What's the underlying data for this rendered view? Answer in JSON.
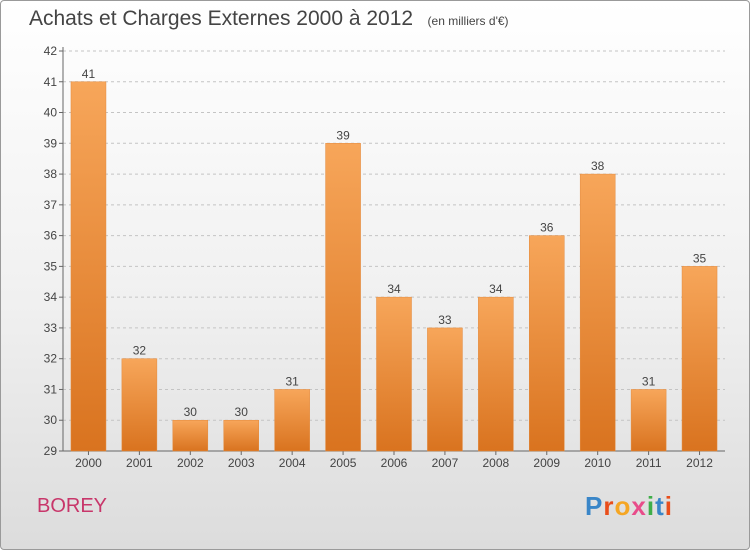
{
  "header": {
    "title": "Achats et Charges Externes 2000 à 2012",
    "unit": "(en milliers d'€)"
  },
  "footer": {
    "commune": "BOREY",
    "brand": "Proxiti"
  },
  "colors": {
    "bar_light": "#f7a65a",
    "bar_dark": "#d9731f",
    "commune": "#c8366a",
    "brand_letters": [
      "#3a86c8",
      "#e94e1b",
      "#f5a623",
      "#e84c8a",
      "#3fae49",
      "#3a86c8",
      "#e94e1b"
    ]
  },
  "chart_data": {
    "type": "bar",
    "categories": [
      "2000",
      "2001",
      "2002",
      "2003",
      "2004",
      "2005",
      "2006",
      "2007",
      "2008",
      "2009",
      "2010",
      "2011",
      "2012"
    ],
    "values": [
      41,
      32,
      30,
      30,
      31,
      39,
      34,
      33,
      34,
      36,
      38,
      31,
      35
    ],
    "ylim": [
      29,
      42
    ],
    "yticks": [
      29,
      30,
      31,
      32,
      33,
      34,
      35,
      36,
      37,
      38,
      39,
      40,
      41,
      42
    ],
    "grid": "horizontal-dashed",
    "data_labels": true,
    "legend": "none"
  }
}
